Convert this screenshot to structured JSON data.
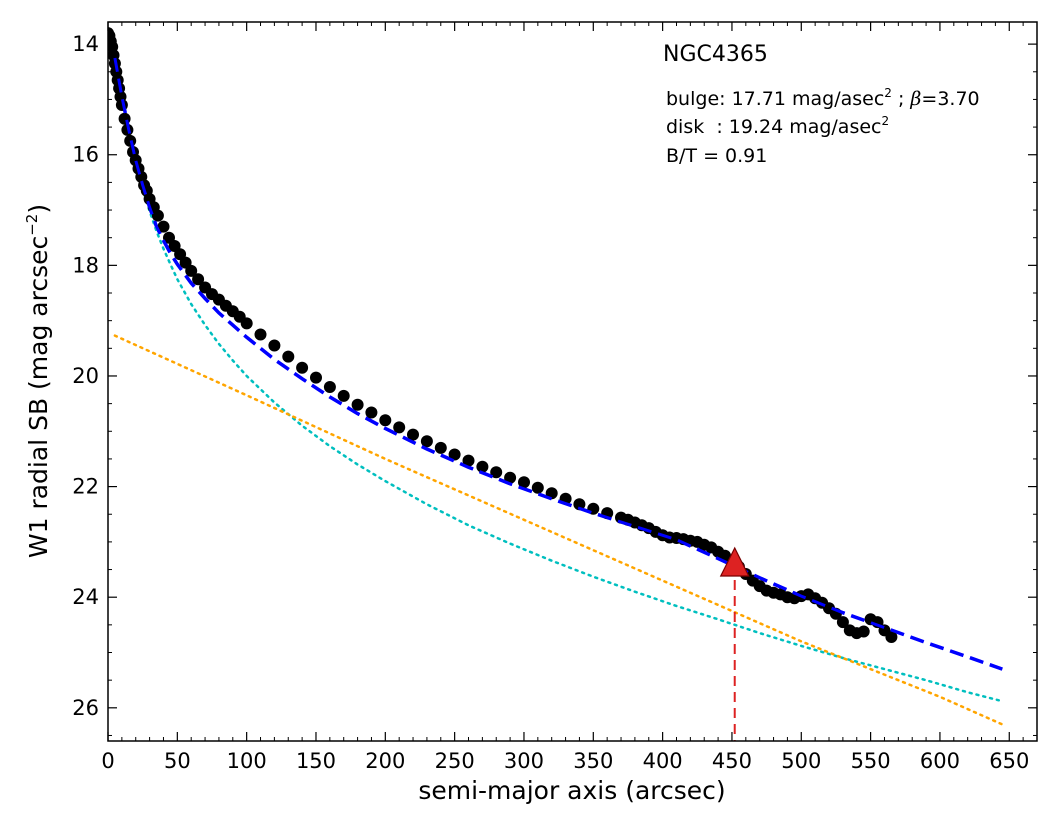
{
  "chart_data": {
    "type": "scatter",
    "title": "NGC4365",
    "xlabel": "semi-major axis (arcsec)",
    "ylabel": "W1 radial SB (mag arcsec",
    "ylabel_sup": "−2",
    "ylabel_close": ")",
    "xlim": [
      0,
      670
    ],
    "ylim": [
      26.6,
      13.6
    ],
    "y_inverted": true,
    "x_ticks": [
      0,
      50,
      100,
      150,
      200,
      250,
      300,
      350,
      400,
      450,
      500,
      550,
      600,
      650
    ],
    "y_ticks": [
      14,
      16,
      18,
      20,
      22,
      24,
      26
    ],
    "annotations": {
      "bulge_prefix": "bulge: 17.71 mag/asec",
      "bulge_sup": "2",
      "bulge_suffix": " ; ",
      "beta_symbol": "β",
      "beta_value": "=3.70",
      "disk_prefix": "disk  : 19.24 mag/asec",
      "disk_sup": "2",
      "bt": "B/T = 0.91"
    },
    "series": [
      {
        "style": "black-circles",
        "color": "#000000",
        "x": [
          0,
          1,
          2,
          3,
          4,
          5,
          6,
          7,
          8,
          9,
          10,
          12,
          14,
          16,
          18,
          20,
          22,
          24,
          26,
          28,
          30,
          33,
          36,
          40,
          44,
          48,
          52,
          56,
          60,
          65,
          70,
          75,
          80,
          85,
          90,
          95,
          100,
          110,
          120,
          130,
          140,
          150,
          160,
          170,
          180,
          190,
          200,
          210,
          220,
          230,
          240,
          250,
          260,
          270,
          280,
          290,
          300,
          310,
          320,
          330,
          340,
          350,
          360,
          370,
          375,
          380,
          385,
          390,
          395,
          400,
          405,
          410,
          415,
          420,
          425,
          430,
          435,
          440,
          445,
          450,
          455,
          460,
          465,
          470,
          475,
          480,
          485,
          490,
          495,
          500,
          505,
          510,
          515,
          520,
          525,
          530,
          535,
          540,
          545,
          550,
          555,
          560,
          565
        ],
        "y": [
          13.8,
          13.85,
          13.95,
          14.05,
          14.2,
          14.35,
          14.5,
          14.65,
          14.8,
          14.95,
          15.1,
          15.35,
          15.55,
          15.75,
          15.95,
          16.1,
          16.25,
          16.4,
          16.55,
          16.65,
          16.8,
          16.95,
          17.1,
          17.3,
          17.5,
          17.65,
          17.8,
          17.95,
          18.1,
          18.25,
          18.4,
          18.52,
          18.62,
          18.73,
          18.83,
          18.93,
          19.05,
          19.25,
          19.45,
          19.65,
          19.85,
          20.03,
          20.2,
          20.36,
          20.52,
          20.66,
          20.8,
          20.93,
          21.06,
          21.18,
          21.3,
          21.42,
          21.53,
          21.64,
          21.74,
          21.84,
          21.92,
          22.02,
          22.12,
          22.22,
          22.32,
          22.4,
          22.48,
          22.56,
          22.6,
          22.65,
          22.7,
          22.75,
          22.82,
          22.88,
          22.92,
          22.93,
          22.95,
          22.98,
          23.0,
          23.05,
          23.1,
          23.18,
          23.25,
          23.35,
          23.45,
          23.58,
          23.7,
          23.8,
          23.88,
          23.92,
          23.95,
          24.0,
          24.02,
          23.98,
          23.95,
          24.02,
          24.1,
          24.2,
          24.3,
          24.45,
          24.6,
          24.65,
          24.62,
          24.4,
          24.45,
          24.6,
          24.72
        ]
      },
      {
        "name": "",
        "style": "dashed-fit",
        "color": "#0000ff",
        "x": [
          5,
          10,
          15,
          20,
          25,
          30,
          35,
          40,
          45,
          50,
          60,
          70,
          80,
          90,
          100,
          120,
          140,
          160,
          180,
          200,
          230,
          260,
          290,
          320,
          350,
          380,
          410,
          440,
          470,
          500,
          530,
          560,
          590,
          620,
          645
        ],
        "y": [
          14.25,
          14.95,
          15.55,
          16.1,
          16.55,
          16.95,
          17.3,
          17.55,
          17.78,
          17.98,
          18.32,
          18.6,
          18.86,
          19.08,
          19.3,
          19.7,
          20.05,
          20.38,
          20.68,
          20.95,
          21.32,
          21.65,
          21.95,
          22.22,
          22.48,
          22.72,
          22.96,
          23.3,
          23.65,
          23.98,
          24.28,
          24.55,
          24.82,
          25.08,
          25.3
        ]
      },
      {
        "name": "",
        "style": "dotted-bulge",
        "color": "#00bfbf",
        "x": [
          5,
          10,
          15,
          20,
          25,
          30,
          35,
          40,
          45,
          50,
          60,
          70,
          80,
          90,
          100,
          120,
          140,
          160,
          180,
          200,
          230,
          260,
          290,
          320,
          350,
          380,
          410,
          440,
          470,
          500,
          530,
          560,
          590,
          620,
          645
        ],
        "y": [
          14.25,
          14.97,
          15.6,
          16.15,
          16.62,
          17.02,
          17.38,
          17.7,
          17.98,
          18.25,
          18.7,
          19.08,
          19.42,
          19.72,
          20.0,
          20.48,
          20.9,
          21.27,
          21.6,
          21.9,
          22.32,
          22.7,
          23.03,
          23.34,
          23.63,
          23.9,
          24.16,
          24.4,
          24.65,
          24.88,
          25.1,
          25.3,
          25.5,
          25.72,
          25.88
        ]
      },
      {
        "name": "",
        "style": "dotted-disk",
        "color": "#ffa500",
        "x": [
          5,
          100,
          200,
          300,
          400,
          500,
          600,
          645
        ],
        "y": [
          19.27,
          20.35,
          21.5,
          22.6,
          23.7,
          24.8,
          25.8,
          26.3
        ]
      }
    ],
    "marker": {
      "style": "red-triangle",
      "color": "#dd2222",
      "x": 452,
      "y": 23.4,
      "vline_to_bottom": true
    }
  }
}
